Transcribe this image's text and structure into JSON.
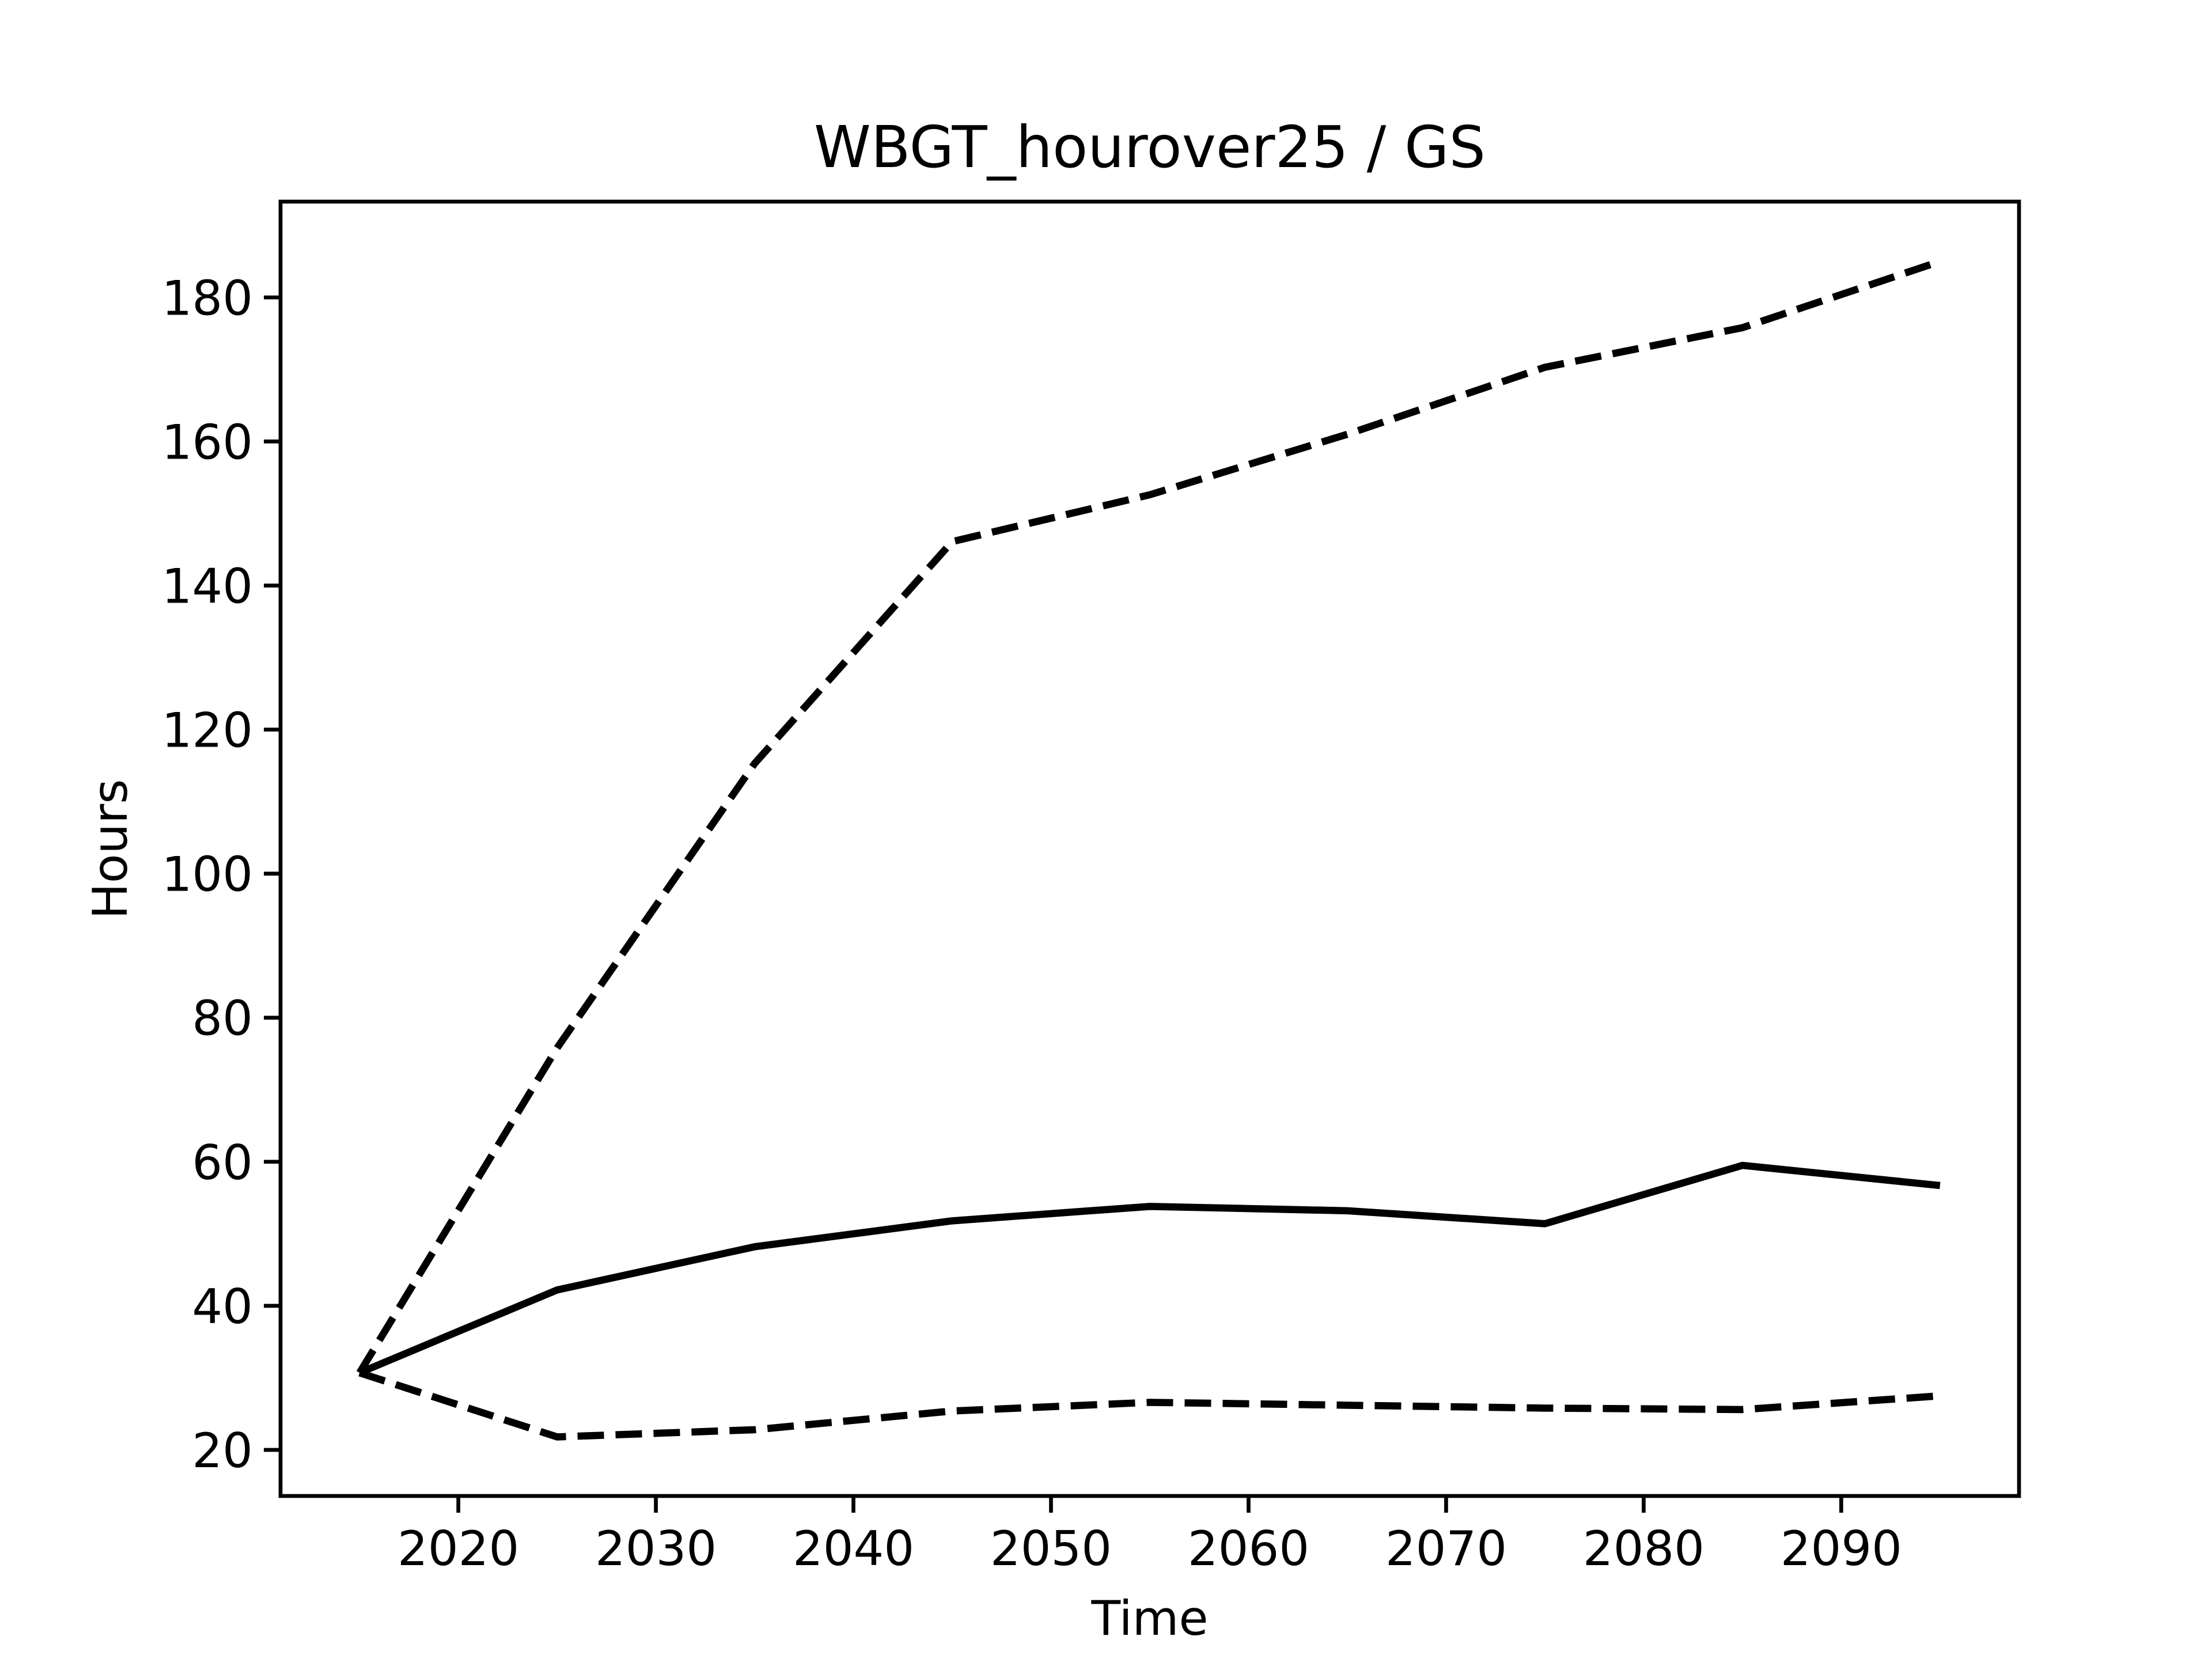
{
  "chart_data": {
    "type": "line",
    "title": "WBGT_hourover25 / GS",
    "x_label": "Time",
    "y_label": "Hours",
    "x": [
      2015,
      2025,
      2035,
      2045,
      2055,
      2065,
      2075,
      2085,
      2095
    ],
    "series": [
      {
        "color": "#000000",
        "style": "solid",
        "values": [
          30.7,
          42.2,
          48.2,
          51.8,
          53.8,
          53.2,
          51.4,
          59.5,
          56.7
        ]
      },
      {
        "color": "#000000",
        "style": "dashed",
        "values": [
          30.7,
          75.8,
          115.3,
          146.1,
          152.6,
          161.0,
          170.3,
          175.8,
          185.0
        ]
      },
      {
        "color": "#000000",
        "style": "dashed",
        "values": [
          30.7,
          21.8,
          22.8,
          25.4,
          26.6,
          26.2,
          25.8,
          25.6,
          27.5
        ]
      }
    ],
    "xlim": [
      2011,
      2099
    ],
    "xticks": [
      2020,
      2030,
      2040,
      2050,
      2060,
      2070,
      2080,
      2090
    ],
    "ylim": [
      13.6,
      193.3
    ],
    "yticks": [
      20,
      40,
      60,
      80,
      100,
      120,
      140,
      160,
      180
    ],
    "grid": false
  }
}
